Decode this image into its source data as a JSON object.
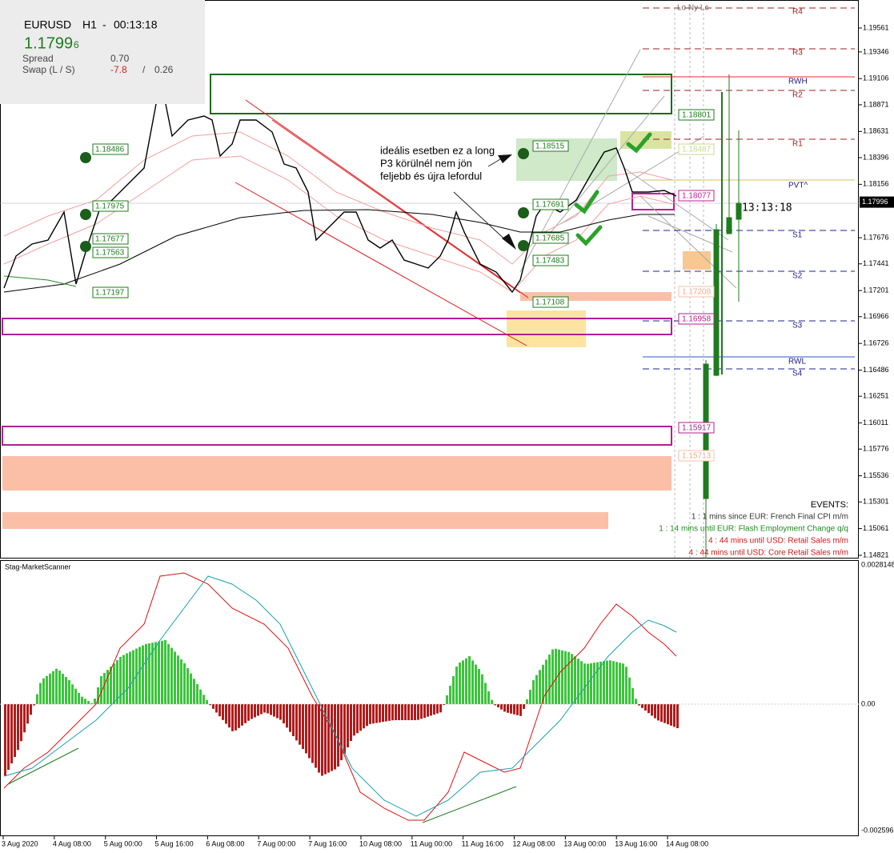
{
  "header": {
    "symbol": "EURUSD",
    "timeframe": "H1",
    "separator": "-",
    "countdown": "00:13:18",
    "bid": "1.1799",
    "bid_digit": "6",
    "spread_label": "Spread",
    "spread": "0.70",
    "swap_label": "Swap (L / S)",
    "swap_long": "-7.8",
    "swap_sep": "/",
    "swap_short": "0.26"
  },
  "price_axis": [
    "1.19561",
    "1.19346",
    "1.19106",
    "1.18871",
    "1.18631",
    "1.18396",
    "1.18156",
    "1.17676",
    "1.17441",
    "1.17201",
    "1.16966",
    "1.16726",
    "1.16486",
    "1.16251",
    "1.16011",
    "1.15776",
    "1.15536",
    "1.15301",
    "1.15061",
    "1.14821"
  ],
  "current_price": "1.17996",
  "time_axis": [
    "3 Aug 2020",
    "4 Aug 08:00",
    "5 Aug 00:00",
    "5 Aug 16:00",
    "6 Aug 08:00",
    "7 Aug 00:00",
    "7 Aug 16:00",
    "10 Aug 08:00",
    "11 Aug 00:00",
    "11 Aug 16:00",
    "12 Aug 08:00",
    "13 Aug 00:00",
    "13 Aug 16:00",
    "14 Aug 08:00"
  ],
  "sessions": "Lo Ny Lc",
  "levels": [
    "R4",
    "R3",
    "RWH",
    "R2",
    "R1",
    "PVT^",
    "S1",
    "S2",
    "S3",
    "RWL",
    "S4"
  ],
  "right_tags": [
    "1.18801",
    "1.18487",
    "1.18077",
    "1.17208",
    "1.16958",
    "1.15917",
    "1.15713"
  ],
  "left_tags": [
    "1.18486",
    "1.17975",
    "1.17677",
    "1.17563",
    "1.17197",
    "1.18515",
    "1.17691",
    "1.17685",
    "1.17483",
    "1.17108"
  ],
  "annotation": [
    "ideális esetben ez a long",
    "P3 körülnél nem jön",
    "feljebb és újra lefordul"
  ],
  "candle_timer": "13:13:18",
  "events": {
    "title": "EVENTS:",
    "items": [
      "1 : 1 mins since EUR: French Final CPI m/m",
      "1 : 14 mins until EUR: Flash Employment Change q/q",
      "4 : 44 mins until USD: Retail Sales m/m",
      "4 : 44 mins until USD: Core Retail Sales m/m"
    ]
  },
  "indicator": {
    "name": "Stag-MarketScanner",
    "axis": [
      "0.0028148",
      "0.00",
      "-0.002596"
    ]
  }
}
